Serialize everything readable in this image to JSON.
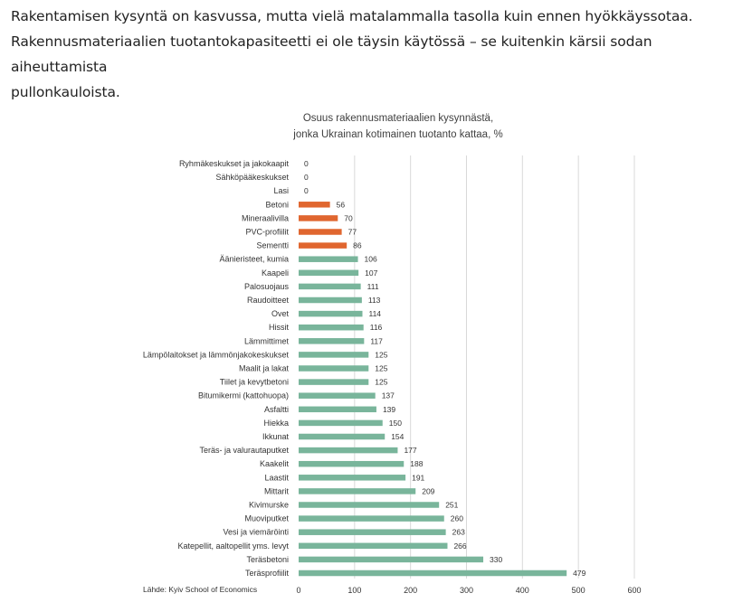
{
  "intro": {
    "line1": "Rakentamisen kysyntä on kasvussa, mutta vielä matalammalla tasolla kuin ennen hyökkäyssotaa.",
    "line2": "Rakennusmateriaalien tuotantokapasiteetti ei ole täysin käytössä – se kuitenkin kärsii sodan aiheuttamista",
    "line3": "pullonkauloista."
  },
  "chart_title_line1": "Osuus rakennusmateriaalien kysynnästä,",
  "chart_title_line2": "jonka Ukrainan kotimainen tuotanto kattaa, %",
  "source": "Lähde: Kyiv School of Economics",
  "colors": {
    "orange": "#E0662F",
    "green": "#79B59B",
    "grid": "#D9D9D9",
    "text": "#333333"
  },
  "chart_data": {
    "type": "bar",
    "orientation": "horizontal",
    "title": "Osuus rakennusmateriaalien kysynnästä, jonka Ukrainan kotimainen tuotanto kattaa, %",
    "xlim": [
      0,
      600
    ],
    "xticks": [
      0,
      100,
      200,
      300,
      400,
      500,
      600
    ],
    "grid": true,
    "categories": [
      "Ryhmäkeskukset ja jakokaapit",
      "Sähköpääkeskukset",
      "Lasi",
      "Betoni",
      "Mineraalivilla",
      "PVC-profiilit",
      "Sementti",
      "Äänieristeet, kumia",
      "Kaapeli",
      "Palosuojaus",
      "Raudoitteet",
      "Ovet",
      "Hissit",
      "Lämmittimet",
      "Lämpölaitokset ja lämmönjakokeskukset",
      "Maalit ja lakat",
      "Tiilet ja kevytbetoni",
      "Bitumikermi (kattohuopa)",
      "Asfaltti",
      "Hiekka",
      "Ikkunat",
      "Teräs- ja valurautaputket",
      "Kaakelit",
      "Laastit",
      "Mittarit",
      "Kivimurske",
      "Muoviputket",
      "Vesi ja viemäröinti",
      "Katepellit, aaltopellit yms. levyt",
      "Teräsbetoni",
      "Teräsprofiilit"
    ],
    "values": [
      0,
      0,
      0,
      56,
      70,
      77,
      86,
      106,
      107,
      111,
      113,
      114,
      116,
      117,
      125,
      125,
      125,
      137,
      139,
      150,
      154,
      177,
      188,
      191,
      209,
      251,
      260,
      263,
      266,
      330,
      479
    ],
    "value_labels": [
      "0",
      "0",
      "0",
      "56",
      "70",
      "77",
      "86",
      "106",
      "107",
      "111",
      "113",
      "114",
      "116",
      "117",
      "125",
      "125",
      "125",
      "137",
      "139",
      "150",
      "154",
      "177",
      "188",
      "191",
      "209",
      "251",
      "260",
      "263",
      "266",
      "330",
      "479"
    ],
    "bar_colors": [
      "orange",
      "orange",
      "orange",
      "orange",
      "orange",
      "orange",
      "orange",
      "green",
      "green",
      "green",
      "green",
      "green",
      "green",
      "green",
      "green",
      "green",
      "green",
      "green",
      "green",
      "green",
      "green",
      "green",
      "green",
      "green",
      "green",
      "green",
      "green",
      "green",
      "green",
      "green",
      "green"
    ]
  }
}
